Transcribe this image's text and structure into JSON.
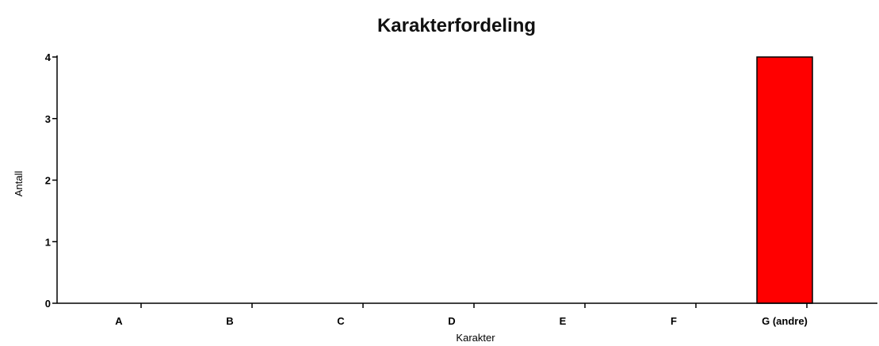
{
  "chart_data": {
    "type": "bar",
    "title": "Karakterfordeling",
    "xlabel": "Karakter",
    "ylabel": "Antall",
    "categories": [
      "A",
      "B",
      "C",
      "D",
      "E",
      "F",
      "G (andre)"
    ],
    "values": [
      0,
      0,
      0,
      0,
      0,
      0,
      4
    ],
    "ylim": [
      0,
      4
    ],
    "yticks": [
      "0",
      "1",
      "2",
      "3",
      "4"
    ],
    "grid": false,
    "legend": "none",
    "bar_color": "#ff0000",
    "bar_edge_color": "#000000"
  }
}
